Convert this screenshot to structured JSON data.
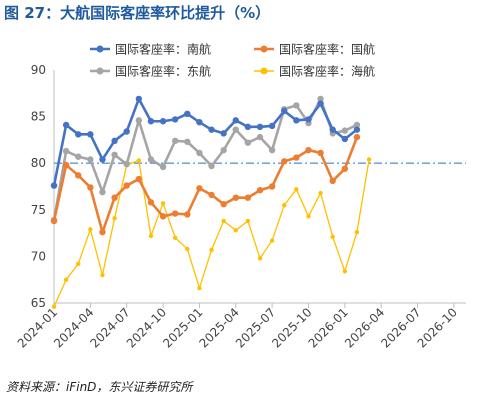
{
  "title": "图 27：大航国际客座率环比提升（%）",
  "source": "资料来源：iFinD，东兴证券研究所",
  "colors": {
    "title": "#1f5a9c",
    "south": "#4472c4",
    "china": "#ed7d31",
    "east": "#a5a5a5",
    "hainan": "#ffc000",
    "reference": "#5b9bd5"
  },
  "chart_data": {
    "type": "line",
    "title": "",
    "xlabel": "",
    "ylabel": "",
    "ylim": [
      65,
      90
    ],
    "yticks": [
      65,
      70,
      75,
      80,
      85,
      90
    ],
    "xlim": [
      "2024-01",
      "2026-11"
    ],
    "xticks": [
      "2024-01",
      "2024-04",
      "2024-07",
      "2024-10",
      "2025-01",
      "2025-04",
      "2025-07",
      "2025-10",
      "2026-01",
      "2026-04",
      "2026-07",
      "2026-10"
    ],
    "grid": false,
    "legend_position": "top",
    "x": [
      "2024-01",
      "2024-02",
      "2024-03",
      "2024-04",
      "2024-05",
      "2024-06",
      "2024-07",
      "2024-08",
      "2024-09",
      "2024-10",
      "2024-11",
      "2024-12",
      "2025-01",
      "2025-02",
      "2025-03",
      "2025-04",
      "2025-05",
      "2025-06",
      "2025-07",
      "2025-08",
      "2025-09",
      "2025-10",
      "2025-11",
      "2025-12",
      "2026-01",
      "2026-02",
      "2026-03"
    ],
    "series": [
      {
        "name": "国际客座率：南航",
        "color_key": "south",
        "values": [
          77.6,
          84.1,
          83.1,
          83.1,
          80.4,
          82.4,
          83.4,
          86.9,
          84.5,
          84.5,
          84.7,
          85.3,
          84.4,
          83.6,
          83.2,
          84.6,
          83.9,
          83.9,
          84.0,
          85.6,
          84.6,
          84.7,
          86.4,
          83.6,
          82.6,
          83.6,
          null
        ]
      },
      {
        "name": "国际客座率：国航",
        "color_key": "china",
        "values": [
          73.8,
          79.8,
          78.7,
          77.4,
          72.6,
          76.3,
          77.6,
          78.3,
          75.8,
          74.3,
          74.6,
          74.5,
          77.3,
          76.6,
          75.6,
          76.3,
          76.3,
          77.1,
          77.5,
          80.2,
          80.6,
          81.4,
          81.1,
          78.1,
          79.4,
          82.8,
          null
        ]
      },
      {
        "name": "国际客座率：东航",
        "color_key": "east",
        "values": [
          73.9,
          81.3,
          80.7,
          80.4,
          76.9,
          80.9,
          79.9,
          84.6,
          80.4,
          79.6,
          82.4,
          82.3,
          81.1,
          79.7,
          81.4,
          83.6,
          82.2,
          82.8,
          81.4,
          85.8,
          86.2,
          84.3,
          86.9,
          83.2,
          83.5,
          84.1,
          null
        ]
      },
      {
        "name": "国际客座率：海航",
        "color_key": "hainan",
        "values": [
          64.6,
          67.5,
          69.2,
          72.9,
          68.0,
          74.1,
          79.8,
          80.3,
          72.2,
          75.7,
          72.0,
          70.8,
          66.6,
          70.7,
          73.8,
          72.8,
          73.8,
          69.8,
          71.7,
          75.5,
          77.2,
          74.3,
          76.8,
          72.1,
          68.4,
          72.6,
          80.4
        ]
      }
    ],
    "reference_line": {
      "y": 80
    }
  }
}
